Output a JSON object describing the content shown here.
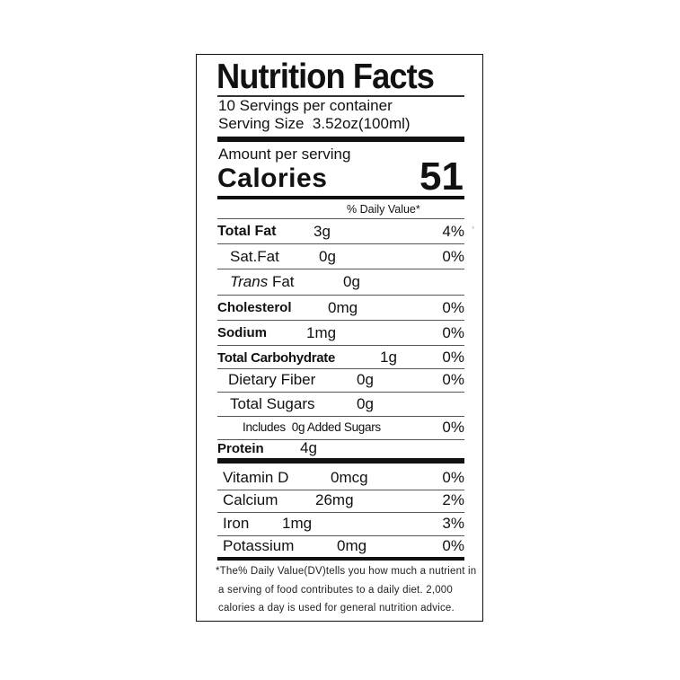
{
  "title": "Nutrition Facts",
  "servings_per_container": "10 Servings per container",
  "serving_size_label": "Serving Size",
  "serving_size_value": "3.52oz(100ml)",
  "amount_per_serving": "Amount per serving",
  "calories_label": "Calories",
  "calories_value": "51",
  "daily_value_header": "% Daily Value*",
  "nutrients": [
    {
      "name": "Total Fat",
      "amount": "3g",
      "dv": "4%"
    },
    {
      "name": "Sat.Fat",
      "amount": "0g",
      "dv": "0%"
    },
    {
      "name_italic": "Trans",
      "name": "Fat",
      "amount": "0g"
    },
    {
      "name": "Cholesterol",
      "amount": "0mg",
      "dv": "0%"
    },
    {
      "name": "Sodium",
      "amount": "1mg",
      "dv": "0%"
    },
    {
      "name": "Total Carbohydrate",
      "amount": "1g",
      "dv": "0%"
    },
    {
      "name": "Dietary Fiber",
      "amount": "0g",
      "dv": "0%"
    },
    {
      "name": "Total Sugars",
      "amount": "0g"
    },
    {
      "name": "Includes  0g Added Sugars",
      "dv": "0%"
    },
    {
      "name": "Protein",
      "amount": "4g"
    }
  ],
  "vitamins": [
    {
      "name": "Vitamin D",
      "amount": "0mcg",
      "dv": "0%"
    },
    {
      "name": "Calcium",
      "amount": "26mg",
      "dv": "2%"
    },
    {
      "name": "Iron",
      "amount": "1mg",
      "dv": "3%"
    },
    {
      "name": "Potassium",
      "amount": "0mg",
      "dv": "0%"
    }
  ],
  "footnote": [
    "*The% Daily Value(DV)tells you how much a nutrient in",
    "a serving of food contributes to a daily diet. 2,000",
    "calories a day is used for general nutrition advice."
  ],
  "stray_mark": "*"
}
